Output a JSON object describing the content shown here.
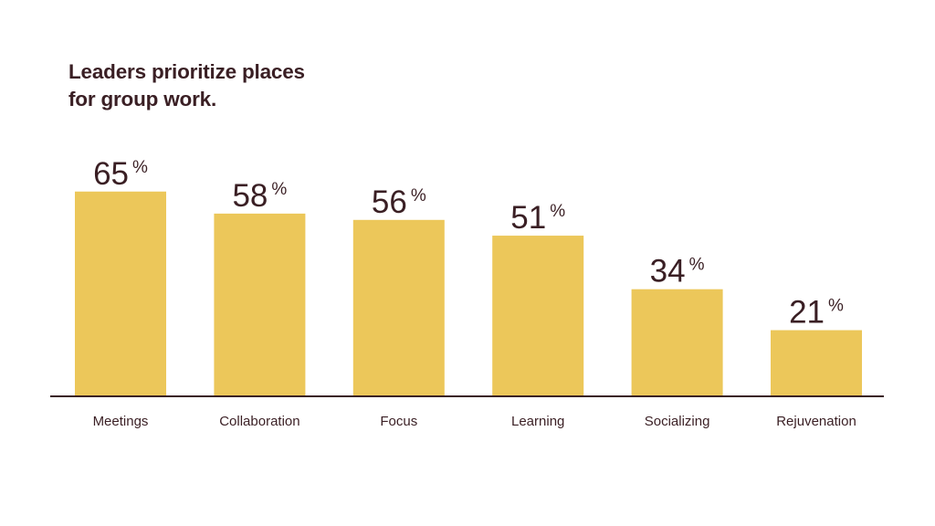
{
  "chart_data": {
    "type": "bar",
    "title_lines": [
      "Leaders prioritize places",
      "for group work."
    ],
    "categories": [
      "Meetings",
      "Collaboration",
      "Focus",
      "Learning",
      "Socializing",
      "Rejuvenation"
    ],
    "values": [
      65,
      58,
      56,
      51,
      34,
      21
    ],
    "value_suffix": "%",
    "xlabel": "",
    "ylabel": "",
    "ylim": [
      0,
      100
    ],
    "grid": false,
    "legend": "none",
    "colors": {
      "bar": "#ecc75a",
      "axis": "#3a1f24",
      "text": "#3a1f24"
    }
  }
}
